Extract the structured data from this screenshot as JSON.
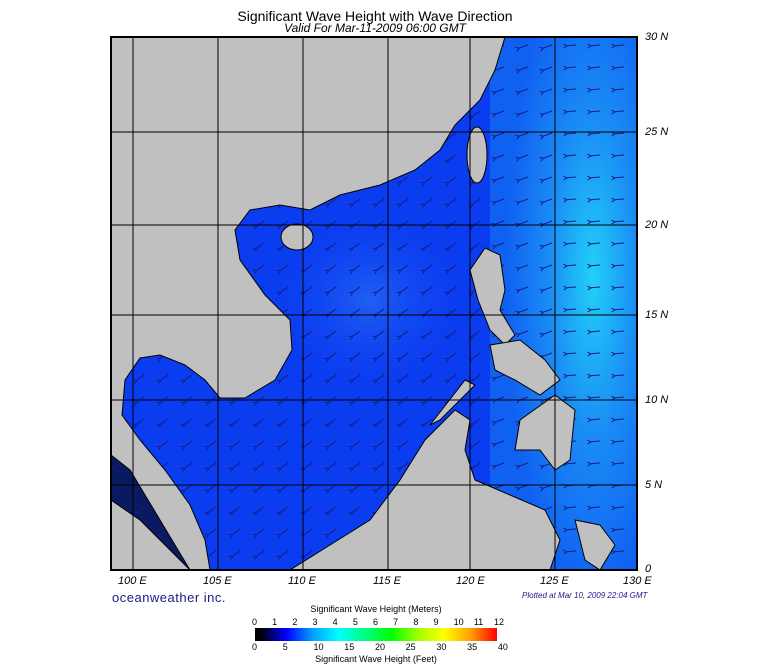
{
  "title": "Significant Wave Height with Wave Direction",
  "subtitle": "Valid For Mar-11-2009 06:00 GMT",
  "map": {
    "region": "South China Sea / Western Pacific",
    "lon_labels": [
      "100 E",
      "105 E",
      "110 E",
      "115 E",
      "120 E",
      "125 E",
      "130 E"
    ],
    "lat_labels": [
      "30 N",
      "25 N",
      "20 N",
      "15 N",
      "10 N",
      "5 N",
      "0"
    ],
    "land_color": "#c0c0c0",
    "ocean_color": "#0a3cf0",
    "arrow_color": "#1a1a80",
    "grid": true
  },
  "logo": "oceanweather inc.",
  "plotted": "Plotted at Mar 10, 2009 22:04 GMT",
  "colorbar": {
    "title_top": "Significant Wave Height (Meters)",
    "title_bottom": "Significant Wave Height (Feet)",
    "meters": [
      "0",
      "1",
      "2",
      "3",
      "4",
      "5",
      "6",
      "7",
      "8",
      "9",
      "10",
      "11",
      "12"
    ],
    "feet": [
      "0",
      "5",
      "10",
      "15",
      "20",
      "25",
      "30",
      "35",
      "40"
    ],
    "colors": [
      "#000000",
      "#0000ff",
      "#00a0ff",
      "#00ffff",
      "#00ff80",
      "#00ff00",
      "#a0ff00",
      "#ffff00",
      "#ffa000",
      "#ff0000"
    ]
  }
}
